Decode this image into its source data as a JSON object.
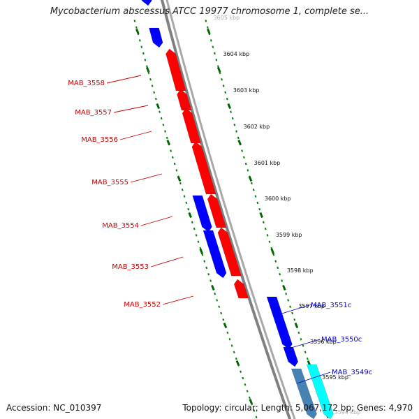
{
  "title": "Mycobacterium abscessus ATCC 19977 chromosome 1, complete se...",
  "footer": {
    "accession": "Accession: NC_010397",
    "summary": "Topology: circular; Length: 5,067,172 bp; Genes: 4,970"
  },
  "colors": {
    "forward_gene": "#ff0000",
    "reverse_gene": "#0000ff",
    "reverse_gene_steel": "#4682b4",
    "reverse_gene_cyan": "#00ffff",
    "backbone": "#808080",
    "tick_marks": "#008000",
    "forward_label": "#cc0000",
    "reverse_label": "#0000cc"
  },
  "axis": {
    "unit": "kbp",
    "ticks": [
      "3594",
      "3595",
      "3596",
      "3597",
      "3598",
      "3599",
      "3600",
      "3601",
      "3602",
      "3603",
      "3604",
      "3605"
    ]
  },
  "genes": [
    {
      "name": "MAB_3558",
      "strand": "forward",
      "color": "forward_gene",
      "labeled": true
    },
    {
      "name": "MAB_3557",
      "strand": "forward",
      "color": "forward_gene",
      "labeled": true
    },
    {
      "name": "MAB_3556",
      "strand": "forward",
      "color": "forward_gene",
      "labeled": true
    },
    {
      "name": "MAB_3555",
      "strand": "forward",
      "color": "forward_gene",
      "labeled": true
    },
    {
      "name": "MAB_3554",
      "strand": "forward",
      "color": "forward_gene",
      "labeled": true
    },
    {
      "name": "MAB_3553",
      "strand": "forward",
      "color": "forward_gene",
      "labeled": true
    },
    {
      "name": "MAB_3552",
      "strand": "forward",
      "color": "forward_gene",
      "labeled": true
    },
    {
      "name": "MAB_3551c",
      "strand": "reverse",
      "color": "reverse_gene",
      "labeled": true
    },
    {
      "name": "MAB_3550c",
      "strand": "reverse",
      "color": "reverse_gene",
      "labeled": true
    },
    {
      "name": "MAB_3549c",
      "strand": "reverse",
      "color": "reverse_gene_cyan",
      "labeled": true
    },
    {
      "name": "",
      "strand": "reverse",
      "color": "reverse_gene",
      "labeled": false
    },
    {
      "name": "",
      "strand": "reverse",
      "color": "reverse_gene",
      "labeled": false
    },
    {
      "name": "",
      "strand": "reverse",
      "color": "reverse_gene",
      "labeled": false
    },
    {
      "name": "",
      "strand": "reverse",
      "color": "reverse_gene_steel",
      "labeled": false
    },
    {
      "name": "",
      "strand": "reverse",
      "color": "reverse_gene",
      "labeled": false
    }
  ]
}
